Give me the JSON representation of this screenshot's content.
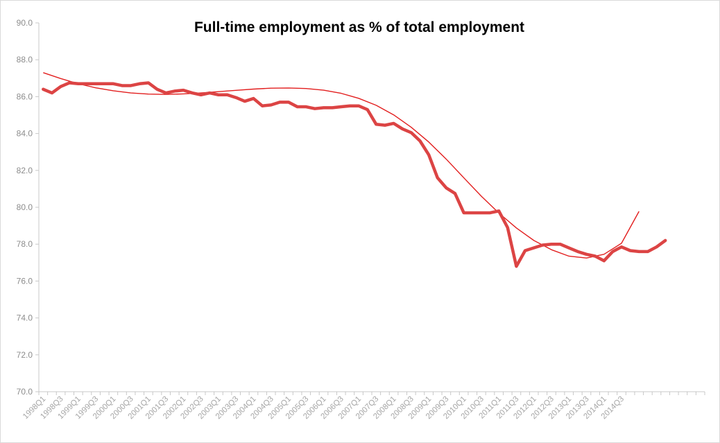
{
  "chart_data": {
    "type": "line",
    "title": "Full-time employment as % of total employment",
    "xlabel": "",
    "ylabel": "",
    "ylim": [
      70.0,
      90.0
    ],
    "y_ticks": [
      "70.0",
      "72.0",
      "74.0",
      "76.0",
      "78.0",
      "80.0",
      "82.0",
      "84.0",
      "86.0",
      "88.0",
      "90.0"
    ],
    "x_tick_labels": [
      "1998Q1",
      "1998Q3",
      "1999Q1",
      "1999Q3",
      "2000Q1",
      "2000Q3",
      "2001Q1",
      "2001Q3",
      "2002Q1",
      "2002Q3",
      "2003Q1",
      "2003Q3",
      "2004Q1",
      "2004Q3",
      "2005Q1",
      "2005Q3",
      "2006Q1",
      "2006Q3",
      "2007Q1",
      "2007Q3",
      "2008Q1",
      "2008Q3",
      "2009Q1",
      "2009Q3",
      "2010Q1",
      "2010Q3",
      "2011Q1",
      "2011Q3",
      "2012Q1",
      "2012Q3",
      "2013Q1",
      "2013Q3",
      "2014Q1",
      "2014Q3"
    ],
    "grid": false,
    "colors": {
      "series": "#dc4444",
      "trend": "#e21e1e",
      "axis": "#c8c8c8",
      "tick_text": "#8c8c8c"
    },
    "series": [
      {
        "values": [
          86.4,
          86.2,
          86.55,
          86.75,
          86.7,
          86.7,
          86.7,
          86.7,
          86.7,
          86.6,
          86.6,
          86.7,
          86.75,
          86.4,
          86.2,
          86.3,
          86.35,
          86.2,
          86.1,
          86.2,
          86.1,
          86.1,
          85.95,
          85.75,
          85.9,
          85.5,
          85.55,
          85.7,
          85.7,
          85.45,
          85.45,
          85.35,
          85.4,
          85.4,
          85.45,
          85.5,
          85.5,
          85.3,
          84.5,
          84.45,
          84.55,
          84.25,
          84.05,
          83.6,
          82.85,
          81.6,
          81.05,
          80.75,
          79.7,
          79.7,
          79.7,
          79.7,
          79.8,
          78.9,
          76.8,
          77.65,
          77.8,
          77.95,
          78.0,
          78.0,
          77.8,
          77.6,
          77.45,
          77.35,
          77.1,
          77.6,
          77.85,
          77.65,
          77.6,
          77.6,
          77.85,
          78.2
        ]
      },
      {
        "type": "trendline",
        "values": [
          87.3,
          86.98,
          86.7,
          86.48,
          86.32,
          86.2,
          86.14,
          86.12,
          86.15,
          86.2,
          86.27,
          86.34,
          86.41,
          86.46,
          86.47,
          86.44,
          86.35,
          86.18,
          85.91,
          85.53,
          85.01,
          84.34,
          83.54,
          82.61,
          81.6,
          80.6,
          79.69,
          78.88,
          78.2,
          77.7,
          77.35,
          77.25,
          77.45,
          78.05,
          79.78
        ]
      }
    ]
  }
}
